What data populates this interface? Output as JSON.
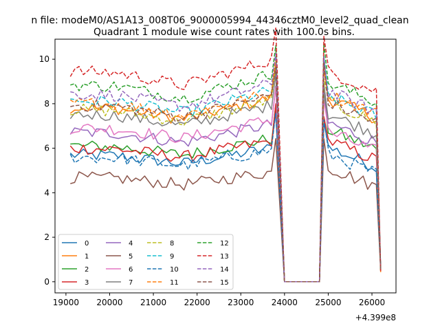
{
  "suptitle": "n file: modeM0/AS1A13_008T06_9000005994_44346cztM0_level2_quad_clean",
  "chart_data": {
    "type": "line",
    "title": "Quadrant 1 module wise count rates with 100.0s bins.",
    "xlabel": "",
    "ylabel": "",
    "x_offset_label": "+4.399e8",
    "xlim": [
      18750,
      26550
    ],
    "ylim": [
      -0.5,
      10.9
    ],
    "xticks": [
      19000,
      20000,
      21000,
      22000,
      23000,
      24000,
      25000,
      26000
    ],
    "yticks": [
      0,
      2,
      4,
      6,
      8,
      10
    ],
    "grid": false,
    "legend_position": "lower-left",
    "legend_columns": 4,
    "x_layout": {
      "seg1_start": 19100,
      "seg1_step": 100,
      "seg1_count": 48,
      "zero_start": 24000,
      "zero_step": 100,
      "zero_count": 8,
      "seg2_start": 24800,
      "seg2_step": 100,
      "seg2_count": 15
    },
    "series": [
      {
        "name": "0",
        "color": "#1f77b4",
        "dash": "solid",
        "base": 5.6,
        "seg2_base": 5.6
      },
      {
        "name": "1",
        "color": "#ff7f0e",
        "dash": "solid",
        "base": 7.7,
        "seg2_base": 7.8
      },
      {
        "name": "2",
        "color": "#2ca02c",
        "dash": "solid",
        "base": 6.0,
        "seg2_base": 6.4
      },
      {
        "name": "3",
        "color": "#d62728",
        "dash": "solid",
        "base": 5.9,
        "seg2_base": 5.9
      },
      {
        "name": "4",
        "color": "#9467bd",
        "dash": "solid",
        "base": 6.6,
        "seg2_base": 6.7
      },
      {
        "name": "5",
        "color": "#8c564b",
        "dash": "solid",
        "base": 4.6,
        "seg2_base": 4.7
      },
      {
        "name": "6",
        "color": "#e377c2",
        "dash": "solid",
        "base": 6.8,
        "seg2_base": 6.3
      },
      {
        "name": "7",
        "color": "#7f7f7f",
        "dash": "solid",
        "base": 7.4,
        "seg2_base": 7.1
      },
      {
        "name": "8",
        "color": "#bcbd22",
        "dash": "dashed",
        "base": 7.6,
        "seg2_base": 7.6
      },
      {
        "name": "9",
        "color": "#17becf",
        "dash": "dashed",
        "base": 8.0,
        "seg2_base": 7.9
      },
      {
        "name": "10",
        "color": "#1f77b4",
        "dash": "dashed",
        "base": 5.5,
        "seg2_base": 5.3
      },
      {
        "name": "11",
        "color": "#ff7f0e",
        "dash": "dashed",
        "base": 7.9,
        "seg2_base": 8.0
      },
      {
        "name": "12",
        "color": "#2ca02c",
        "dash": "dashed",
        "base": 8.7,
        "seg2_base": 8.5
      },
      {
        "name": "13",
        "color": "#d62728",
        "dash": "dashed",
        "base": 9.3,
        "seg2_base": 9.0
      },
      {
        "name": "14",
        "color": "#9467bd",
        "dash": "dashed",
        "base": 8.3,
        "seg2_base": 8.1
      },
      {
        "name": "15",
        "color": "#8c564b",
        "dash": "dashed",
        "base": 7.8,
        "seg2_base": 7.6
      }
    ]
  }
}
